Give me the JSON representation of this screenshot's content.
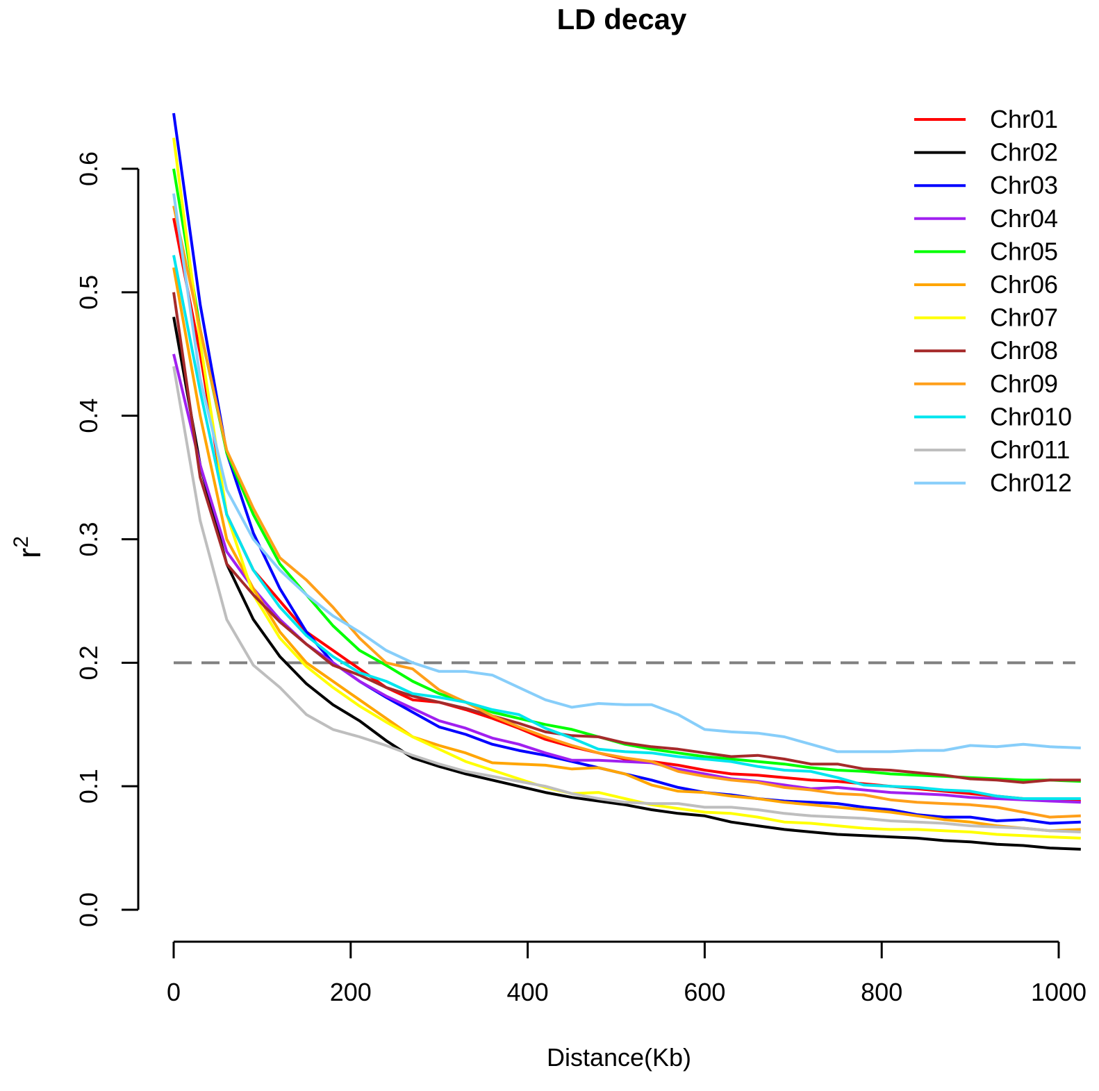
{
  "chart_data": {
    "type": "line",
    "title": "LD decay",
    "xlabel": "Distance(Kb)",
    "ylabel": "r",
    "ylabel_superscript": "2",
    "xlim": [
      0,
      1025
    ],
    "ylim": [
      0,
      0.6
    ],
    "x_ticks": [
      0,
      200,
      400,
      600,
      800,
      1000
    ],
    "x_tick_labels": [
      "0",
      "200",
      "400",
      "600",
      "800",
      "1000"
    ],
    "y_ticks": [
      0.0,
      0.1,
      0.2,
      0.3,
      0.4,
      0.5,
      0.6
    ],
    "y_tick_labels": [
      "0.0",
      "0.1",
      "0.2",
      "0.3",
      "0.4",
      "0.5",
      "0.6"
    ],
    "threshold": {
      "value": 0.2,
      "style": "dashed",
      "color": "#808080"
    },
    "legend_position": "top-right",
    "x": [
      0,
      30,
      60,
      90,
      120,
      150,
      180,
      210,
      240,
      270,
      300,
      330,
      360,
      390,
      420,
      450,
      480,
      510,
      540,
      570,
      600,
      630,
      660,
      690,
      720,
      750,
      780,
      810,
      840,
      870,
      900,
      930,
      960,
      990,
      1025
    ],
    "series": [
      {
        "name": "Chr01",
        "color": "#ff0000",
        "values": [
          0.56,
          0.45,
          0.32,
          0.275,
          0.25,
          0.225,
          0.21,
          0.195,
          0.18,
          0.17,
          0.168,
          0.162,
          0.155,
          0.147,
          0.138,
          0.132,
          0.127,
          0.122,
          0.12,
          0.117,
          0.113,
          0.11,
          0.109,
          0.107,
          0.105,
          0.104,
          0.102,
          0.1,
          0.098,
          0.096,
          0.094,
          0.092,
          0.09,
          0.089,
          0.088
        ]
      },
      {
        "name": "Chr02",
        "color": "#000000",
        "values": [
          0.48,
          0.36,
          0.28,
          0.235,
          0.205,
          0.183,
          0.166,
          0.153,
          0.137,
          0.123,
          0.116,
          0.11,
          0.105,
          0.1,
          0.095,
          0.091,
          0.088,
          0.085,
          0.081,
          0.078,
          0.076,
          0.071,
          0.068,
          0.065,
          0.063,
          0.061,
          0.06,
          0.059,
          0.058,
          0.056,
          0.055,
          0.053,
          0.052,
          0.05,
          0.049
        ]
      },
      {
        "name": "Chr03",
        "color": "#0000ff",
        "values": [
          0.645,
          0.49,
          0.37,
          0.305,
          0.26,
          0.225,
          0.2,
          0.185,
          0.172,
          0.16,
          0.148,
          0.142,
          0.134,
          0.129,
          0.125,
          0.12,
          0.115,
          0.11,
          0.105,
          0.099,
          0.095,
          0.093,
          0.09,
          0.088,
          0.087,
          0.086,
          0.083,
          0.081,
          0.077,
          0.075,
          0.075,
          0.072,
          0.073,
          0.07,
          0.071
        ]
      },
      {
        "name": "Chr04",
        "color": "#a020f0",
        "values": [
          0.45,
          0.36,
          0.29,
          0.26,
          0.235,
          0.215,
          0.2,
          0.185,
          0.173,
          0.163,
          0.153,
          0.147,
          0.139,
          0.134,
          0.127,
          0.121,
          0.121,
          0.12,
          0.119,
          0.114,
          0.11,
          0.106,
          0.104,
          0.101,
          0.098,
          0.099,
          0.097,
          0.095,
          0.094,
          0.093,
          0.091,
          0.09,
          0.089,
          0.088,
          0.087
        ]
      },
      {
        "name": "Chr05",
        "color": "#00ff00",
        "values": [
          0.6,
          0.47,
          0.37,
          0.32,
          0.28,
          0.255,
          0.23,
          0.21,
          0.198,
          0.185,
          0.175,
          0.168,
          0.16,
          0.155,
          0.15,
          0.146,
          0.14,
          0.134,
          0.13,
          0.127,
          0.124,
          0.122,
          0.12,
          0.118,
          0.115,
          0.113,
          0.112,
          0.11,
          0.109,
          0.108,
          0.107,
          0.106,
          0.105,
          0.105,
          0.104
        ]
      },
      {
        "name": "Chr06",
        "color": "#ffa500",
        "values": [
          0.52,
          0.4,
          0.3,
          0.26,
          0.225,
          0.2,
          0.185,
          0.17,
          0.155,
          0.14,
          0.133,
          0.127,
          0.119,
          0.118,
          0.117,
          0.114,
          0.115,
          0.11,
          0.101,
          0.096,
          0.095,
          0.092,
          0.09,
          0.087,
          0.085,
          0.083,
          0.081,
          0.079,
          0.076,
          0.073,
          0.071,
          0.068,
          0.066,
          0.064,
          0.065
        ]
      },
      {
        "name": "Chr07",
        "color": "#ffff00",
        "values": [
          0.625,
          0.46,
          0.32,
          0.255,
          0.22,
          0.197,
          0.18,
          0.165,
          0.152,
          0.14,
          0.13,
          0.12,
          0.113,
          0.106,
          0.099,
          0.094,
          0.095,
          0.09,
          0.085,
          0.082,
          0.079,
          0.078,
          0.075,
          0.071,
          0.07,
          0.068,
          0.066,
          0.065,
          0.065,
          0.064,
          0.063,
          0.061,
          0.06,
          0.059,
          0.058
        ]
      },
      {
        "name": "Chr08",
        "color": "#a52a2a",
        "values": [
          0.5,
          0.35,
          0.28,
          0.255,
          0.233,
          0.215,
          0.198,
          0.19,
          0.18,
          0.173,
          0.168,
          0.163,
          0.157,
          0.151,
          0.144,
          0.141,
          0.14,
          0.135,
          0.132,
          0.13,
          0.127,
          0.124,
          0.125,
          0.122,
          0.118,
          0.118,
          0.114,
          0.113,
          0.111,
          0.109,
          0.106,
          0.105,
          0.103,
          0.105,
          0.105
        ]
      },
      {
        "name": "Chr09",
        "color": "#ff9f1a",
        "values": [
          0.57,
          0.47,
          0.372,
          0.325,
          0.285,
          0.267,
          0.245,
          0.22,
          0.2,
          0.195,
          0.178,
          0.168,
          0.157,
          0.148,
          0.14,
          0.133,
          0.127,
          0.123,
          0.12,
          0.112,
          0.108,
          0.105,
          0.103,
          0.099,
          0.097,
          0.094,
          0.093,
          0.089,
          0.087,
          0.086,
          0.085,
          0.083,
          0.079,
          0.075,
          0.076
        ]
      },
      {
        "name": "Chr010",
        "color": "#00e5ee",
        "values": [
          0.53,
          0.42,
          0.32,
          0.275,
          0.245,
          0.222,
          0.205,
          0.192,
          0.185,
          0.175,
          0.172,
          0.168,
          0.162,
          0.158,
          0.147,
          0.139,
          0.13,
          0.128,
          0.127,
          0.124,
          0.122,
          0.12,
          0.116,
          0.113,
          0.112,
          0.107,
          0.101,
          0.1,
          0.099,
          0.097,
          0.096,
          0.092,
          0.09,
          0.09,
          0.09
        ]
      },
      {
        "name": "Chr011",
        "color": "#bebebe",
        "values": [
          0.44,
          0.315,
          0.235,
          0.198,
          0.18,
          0.158,
          0.146,
          0.14,
          0.133,
          0.125,
          0.118,
          0.112,
          0.108,
          0.104,
          0.1,
          0.094,
          0.09,
          0.087,
          0.086,
          0.086,
          0.083,
          0.083,
          0.081,
          0.078,
          0.076,
          0.075,
          0.074,
          0.072,
          0.071,
          0.07,
          0.068,
          0.067,
          0.066,
          0.064,
          0.063
        ]
      },
      {
        "name": "Chr012",
        "color": "#87cefa",
        "values": [
          0.58,
          0.43,
          0.34,
          0.3,
          0.275,
          0.255,
          0.238,
          0.225,
          0.21,
          0.2,
          0.193,
          0.193,
          0.19,
          0.18,
          0.17,
          0.164,
          0.167,
          0.166,
          0.166,
          0.158,
          0.146,
          0.144,
          0.143,
          0.14,
          0.134,
          0.128,
          0.128,
          0.128,
          0.129,
          0.129,
          0.133,
          0.132,
          0.134,
          0.132,
          0.131
        ]
      }
    ]
  }
}
